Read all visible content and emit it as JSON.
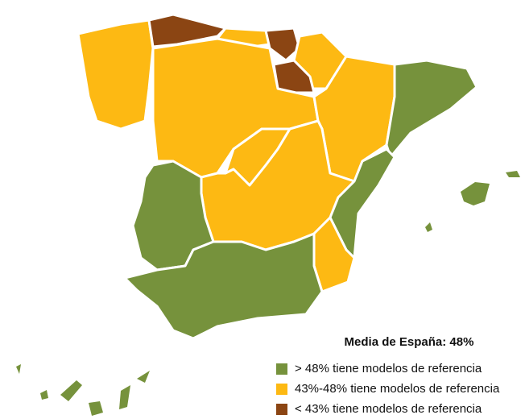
{
  "legend": {
    "title": "Media de España: 48%",
    "items": [
      {
        "label": "> 48% tiene modelos de referencia",
        "color": "#76923c"
      },
      {
        "label": "43%-48% tiene modelos de referencia",
        "color": "#fdb913"
      },
      {
        "label": "< 43% tiene modelos de referencia",
        "color": "#8b4513"
      }
    ]
  }
}
